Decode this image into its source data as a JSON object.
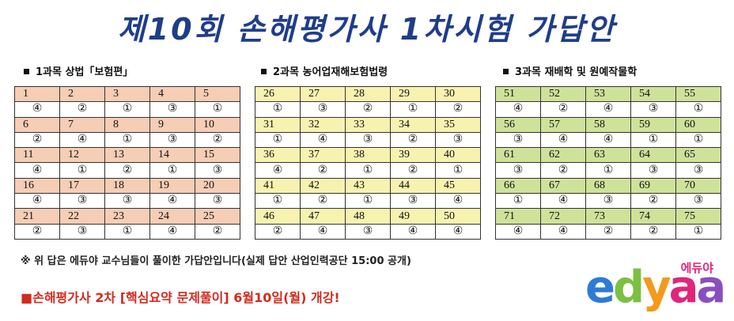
{
  "title": "제10회 손해평가사 1차시험 가답안",
  "sections": [
    {
      "heading": "1과목 상법「보험편」",
      "color": "#f6cdb5",
      "rows": [
        {
          "nums": [
            "1",
            "2",
            "3",
            "4",
            "5"
          ],
          "ans": [
            "④",
            "②",
            "①",
            "③",
            "①"
          ]
        },
        {
          "nums": [
            "6",
            "7",
            "8",
            "9",
            "10"
          ],
          "ans": [
            "②",
            "④",
            "①",
            "③",
            "②"
          ]
        },
        {
          "nums": [
            "11",
            "12",
            "13",
            "14",
            "15"
          ],
          "ans": [
            "④",
            "①",
            "②",
            "①",
            "③"
          ]
        },
        {
          "nums": [
            "16",
            "17",
            "18",
            "19",
            "20"
          ],
          "ans": [
            "④",
            "③",
            "③",
            "④",
            "③"
          ]
        },
        {
          "nums": [
            "21",
            "22",
            "23",
            "24",
            "25"
          ],
          "ans": [
            "②",
            "③",
            "①",
            "④",
            "②"
          ]
        }
      ]
    },
    {
      "heading": "2과목 농어업재해보험법령",
      "color": "#f8f2b0",
      "rows": [
        {
          "nums": [
            "26",
            "27",
            "28",
            "29",
            "30"
          ],
          "ans": [
            "①",
            "③",
            "②",
            "①",
            "②"
          ]
        },
        {
          "nums": [
            "31",
            "32",
            "33",
            "34",
            "35"
          ],
          "ans": [
            "①",
            "④",
            "③",
            "②",
            "③"
          ]
        },
        {
          "nums": [
            "36",
            "37",
            "38",
            "39",
            "40"
          ],
          "ans": [
            "④",
            "②",
            "①",
            "②",
            "①"
          ]
        },
        {
          "nums": [
            "41",
            "42",
            "43",
            "44",
            "45"
          ],
          "ans": [
            "①",
            "②",
            "①",
            "③",
            "④"
          ]
        },
        {
          "nums": [
            "46",
            "47",
            "48",
            "49",
            "50"
          ],
          "ans": [
            "②",
            "④",
            "③",
            "④",
            "④"
          ]
        }
      ]
    },
    {
      "heading": "3과목 재배학 및 원예작물학",
      "color": "#cfe29a",
      "rows": [
        {
          "nums": [
            "51",
            "52",
            "53",
            "54",
            "55"
          ],
          "ans": [
            "④",
            "②",
            "④",
            "③",
            "①"
          ]
        },
        {
          "nums": [
            "56",
            "57",
            "58",
            "59",
            "60"
          ],
          "ans": [
            "③",
            "④",
            "④",
            "①",
            "①"
          ]
        },
        {
          "nums": [
            "61",
            "62",
            "63",
            "64",
            "65"
          ],
          "ans": [
            "③",
            "②",
            "①",
            "③",
            "③"
          ]
        },
        {
          "nums": [
            "66",
            "67",
            "68",
            "69",
            "70"
          ],
          "ans": [
            "①",
            "④",
            "③",
            "②",
            "③"
          ]
        },
        {
          "nums": [
            "71",
            "72",
            "73",
            "74",
            "75"
          ],
          "ans": [
            "④",
            "④",
            "②",
            "②",
            "①"
          ]
        }
      ]
    }
  ],
  "note": "※ 위 답은 에듀야 교수님들이 풀이한 가답안입니다(실제 답안 산업인력공단 15:00 공개)",
  "promo": "■손해평가사 2차 [핵심요약 문제풀이] 6월10일(월) 개강!",
  "logo": {
    "small": "에듀야",
    "big": [
      "e",
      "d",
      "y",
      "a",
      "a"
    ]
  }
}
